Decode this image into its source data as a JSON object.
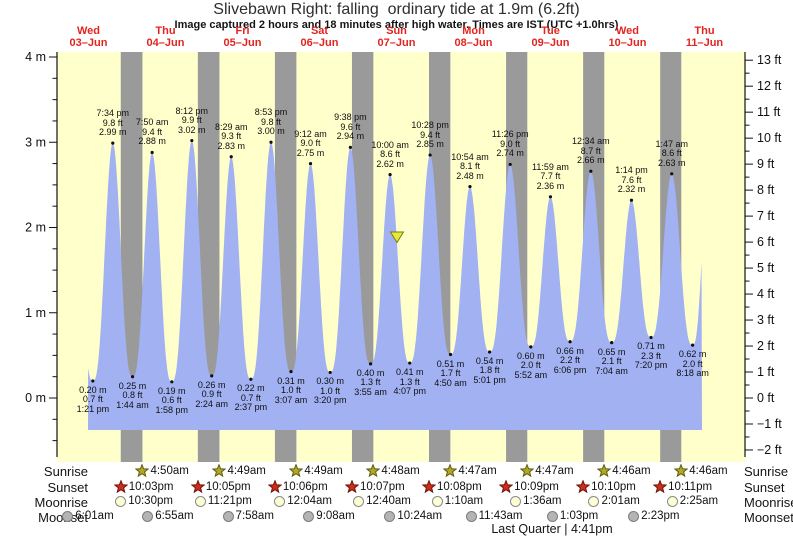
{
  "header": {
    "title": "Slivebawn Right: falling  ordinary tide at 1.9m (6.2ft)",
    "subtitle": "Image captured 2 hours and 18 minutes after high water. Times are IST (UTC +1.0hrs)"
  },
  "days": [
    {
      "dow": "Wed",
      "date": "03–Jun"
    },
    {
      "dow": "Thu",
      "date": "04–Jun"
    },
    {
      "dow": "Fri",
      "date": "05–Jun"
    },
    {
      "dow": "Sat",
      "date": "06–Jun"
    },
    {
      "dow": "Sun",
      "date": "07–Jun"
    },
    {
      "dow": "Mon",
      "date": "08–Jun"
    },
    {
      "dow": "Tue",
      "date": "09–Jun"
    },
    {
      "dow": "Wed",
      "date": "10–Jun"
    },
    {
      "dow": "Thu",
      "date": "11–Jun"
    }
  ],
  "chart_data": {
    "type": "area",
    "title": "Slivebawn Right tide curve, 03-Jun to 11-Jun",
    "y_left_axis": {
      "unit": "m",
      "labels": [
        "4 m",
        "3 m",
        "2 m",
        "1 m",
        "0 m"
      ],
      "values": [
        4,
        3,
        2,
        1,
        0
      ],
      "minor_step": 0.25
    },
    "y_right_axis": {
      "unit": "ft",
      "values": [
        13,
        12,
        11,
        10,
        9,
        8,
        7,
        6,
        5,
        4,
        3,
        2,
        1,
        0,
        -1,
        -2
      ],
      "minor_step": 0.5
    },
    "x_axis": {
      "unit": "days since Wed 03-Jun 00:00",
      "range": [
        0,
        9
      ]
    },
    "current_marker": {
      "t": 4.506,
      "m": 1.9,
      "note": "falling tide at 1.9m (6.2ft)"
    },
    "lead_in": {
      "t": 0.295,
      "m": 2.9
    },
    "lead_out": {
      "t": 8.55,
      "m": 2.6
    },
    "tide_events": [
      {
        "type": "low",
        "t": 0.5563,
        "m": "0.20",
        "ft": "0.7",
        "time": "1:21 pm"
      },
      {
        "type": "high",
        "t": 0.8153,
        "m": "2.99",
        "ft": "9.8",
        "time": "7:34 pm"
      },
      {
        "type": "low",
        "t": 1.0722,
        "m": "0.25",
        "ft": "0.8",
        "time": "1:44 am"
      },
      {
        "type": "high",
        "t": 1.3264,
        "m": "2.88",
        "ft": "9.4",
        "time": "7:50 am"
      },
      {
        "type": "low",
        "t": 1.5819,
        "m": "0.19",
        "ft": "0.6",
        "time": "1:58 pm"
      },
      {
        "type": "high",
        "t": 1.8417,
        "m": "3.02",
        "ft": "9.9",
        "time": "8:12 pm"
      },
      {
        "type": "low",
        "t": 2.1,
        "m": "0.26",
        "ft": "0.9",
        "time": "2:24 am"
      },
      {
        "type": "high",
        "t": 2.3535,
        "m": "2.83",
        "ft": "9.3",
        "time": "8:29 am"
      },
      {
        "type": "low",
        "t": 2.609,
        "m": "0.22",
        "ft": "0.7",
        "time": "2:37 pm"
      },
      {
        "type": "high",
        "t": 2.8701,
        "m": "3.00",
        "ft": "9.8",
        "time": "8:53 pm"
      },
      {
        "type": "low",
        "t": 3.1299,
        "m": "0.31",
        "ft": "1.0",
        "time": "3:07 am"
      },
      {
        "type": "high",
        "t": 3.3833,
        "m": "2.75",
        "ft": "9.0",
        "time": "9:12 am"
      },
      {
        "type": "low",
        "t": 3.6389,
        "m": "0.30",
        "ft": "1.0",
        "time": "3:20 pm"
      },
      {
        "type": "high",
        "t": 3.9014,
        "m": "2.94",
        "ft": "9.6",
        "time": "9:38 pm"
      },
      {
        "type": "low",
        "t": 4.1632,
        "m": "0.40",
        "ft": "1.3",
        "time": "3:55 am"
      },
      {
        "type": "high",
        "t": 4.4167,
        "m": "2.62",
        "ft": "8.6",
        "time": "10:00 am"
      },
      {
        "type": "low",
        "t": 4.6715,
        "m": "0.41",
        "ft": "1.3",
        "time": "4:07 pm"
      },
      {
        "type": "high",
        "t": 4.9361,
        "m": "2.85",
        "ft": "9.4",
        "time": "10:28 pm"
      },
      {
        "type": "low",
        "t": 5.2014,
        "m": "0.51",
        "ft": "1.7",
        "time": "4:50 am"
      },
      {
        "type": "high",
        "t": 5.4542,
        "m": "2.48",
        "ft": "8.1",
        "time": "10:54 am"
      },
      {
        "type": "low",
        "t": 5.709,
        "m": "0.54",
        "ft": "1.8",
        "time": "5:01 pm"
      },
      {
        "type": "high",
        "t": 5.9764,
        "m": "2.74",
        "ft": "9.0",
        "time": "11:26 pm"
      },
      {
        "type": "low",
        "t": 6.2444,
        "m": "0.60",
        "ft": "2.0",
        "time": "5:52 am"
      },
      {
        "type": "high",
        "t": 6.4993,
        "m": "2.36",
        "ft": "7.7",
        "time": "11:59 am"
      },
      {
        "type": "low",
        "t": 6.7542,
        "m": "0.66",
        "ft": "2.2",
        "time": "6:06 pm"
      },
      {
        "type": "high",
        "t": 7.0236,
        "m": "2.66",
        "ft": "8.7",
        "time": "12:34 am"
      },
      {
        "type": "low",
        "t": 7.2944,
        "m": "0.65",
        "ft": "2.1",
        "time": "7:04 am"
      },
      {
        "type": "high",
        "t": 7.5514,
        "m": "2.32",
        "ft": "7.6",
        "time": "1:14 pm"
      },
      {
        "type": "low",
        "t": 7.8056,
        "m": "0.71",
        "ft": "2.3",
        "time": "7:20 pm"
      },
      {
        "type": "high",
        "t": 8.0743,
        "m": "2.63",
        "ft": "8.6",
        "time": "1:47 am"
      },
      {
        "type": "low",
        "t": 8.3458,
        "m": "0.62",
        "ft": "2.0",
        "time": "8:18 am"
      }
    ]
  },
  "astro": {
    "row_labels": [
      "Sunrise",
      "Sunset",
      "Moonrise",
      "Moonset"
    ],
    "sunrise": [
      {
        "t": 1.2007,
        "time": "4:50am"
      },
      {
        "t": 2.2007,
        "time": "4:49am"
      },
      {
        "t": 3.2,
        "time": "4:49am"
      },
      {
        "t": 4.1993,
        "time": "4:48am"
      },
      {
        "t": 5.1993,
        "time": "4:47am"
      },
      {
        "t": 6.1986,
        "time": "4:47am"
      },
      {
        "t": 7.1986,
        "time": "4:46am"
      },
      {
        "t": 8.1986,
        "time": "4:46am"
      }
    ],
    "sunset": [
      {
        "t": 0.9188,
        "time": "10:03pm"
      },
      {
        "t": 1.9201,
        "time": "10:05pm"
      },
      {
        "t": 2.9208,
        "time": "10:06pm"
      },
      {
        "t": 3.9215,
        "time": "10:07pm"
      },
      {
        "t": 4.9222,
        "time": "10:08pm"
      },
      {
        "t": 5.9229,
        "time": "10:09pm"
      },
      {
        "t": 6.9236,
        "time": "10:10pm"
      },
      {
        "t": 7.9243,
        "time": "10:11pm"
      }
    ],
    "moonrise": [
      {
        "t": 0.9375,
        "time": "10:30pm"
      },
      {
        "t": 1.9729,
        "time": "11:21pm"
      },
      {
        "t": 3.0028,
        "time": "12:04am"
      },
      {
        "t": 4.0278,
        "time": "12:40am"
      },
      {
        "t": 5.0486,
        "time": "1:10am"
      },
      {
        "t": 6.0667,
        "time": "1:36am"
      },
      {
        "t": 7.084,
        "time": "2:01am"
      },
      {
        "t": 8.1007,
        "time": "2:25am"
      }
    ],
    "moonset": [
      {
        "t": 0.2507,
        "time": "6:01am"
      },
      {
        "t": 1.2882,
        "time": "6:55am"
      },
      {
        "t": 2.3319,
        "time": "7:58am"
      },
      {
        "t": 3.3806,
        "time": "9:08am"
      },
      {
        "t": 4.4333,
        "time": "10:24am"
      },
      {
        "t": 5.4882,
        "time": "11:43am"
      },
      {
        "t": 6.5438,
        "time": "1:03pm"
      },
      {
        "t": 7.5993,
        "time": "2:23pm"
      }
    ],
    "moon_phase": "Last Quarter | 4:41pm"
  },
  "colors": {
    "plot_bg": "#ffffcc",
    "night_band": "#9a9a9a",
    "tide_fill": "#a1b1f2",
    "day_label": "#e32420",
    "marker_fill": "#e8e839",
    "marker_stroke": "#7c7c18",
    "sunrise_star": "#b2a826",
    "sunrise_star_stroke": "#5c5c10",
    "sunset_star": "#cf2d1c",
    "sunset_star_stroke": "#6e1408",
    "moonrise_fill": "#ffffd6",
    "moonrise_stroke": "#8a8a8a",
    "moonset_fill": "#b4b4b4",
    "moonset_stroke": "#7d7d7d",
    "axis": "#111111"
  }
}
